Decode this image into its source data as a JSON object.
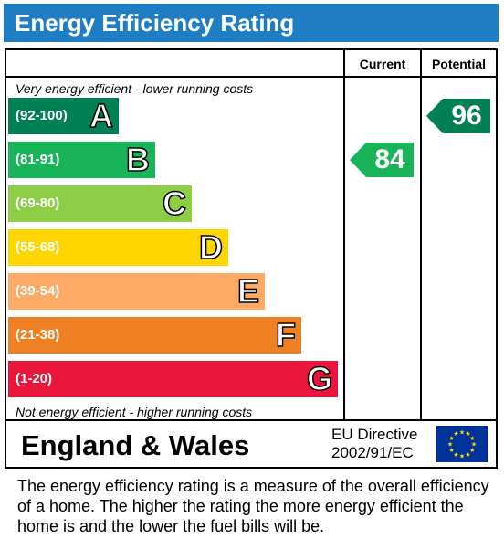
{
  "title": "Energy Efficiency Rating",
  "columns": {
    "current": "Current",
    "potential": "Potential"
  },
  "notes": {
    "top": "Very energy efficient - lower running costs",
    "bottom": "Not energy efficient - higher running costs"
  },
  "bands": [
    {
      "range": "(92-100)",
      "letter": "A",
      "color": "#008054"
    },
    {
      "range": "(81-91)",
      "letter": "B",
      "color": "#19b459"
    },
    {
      "range": "(69-80)",
      "letter": "C",
      "color": "#8dce46"
    },
    {
      "range": "(55-68)",
      "letter": "D",
      "color": "#ffd500"
    },
    {
      "range": "(39-54)",
      "letter": "E",
      "color": "#fcaa65"
    },
    {
      "range": "(21-38)",
      "letter": "F",
      "color": "#ef8023"
    },
    {
      "range": "(1-20)",
      "letter": "G",
      "color": "#e9153b"
    }
  ],
  "ratings": {
    "current": {
      "value": "84",
      "band": "B",
      "color": "#19b459"
    },
    "potential": {
      "value": "96",
      "band": "A",
      "color": "#008054"
    }
  },
  "footer": {
    "region": "England & Wales",
    "directive_line1": "EU Directive",
    "directive_line2": "2002/91/EC",
    "flag_icon": "eu-flag-icon"
  },
  "description": "The energy efficiency rating is a measure of the overall efficiency of a home.  The higher the rating the more energy efficient the home is and the lower the fuel bills will be."
}
